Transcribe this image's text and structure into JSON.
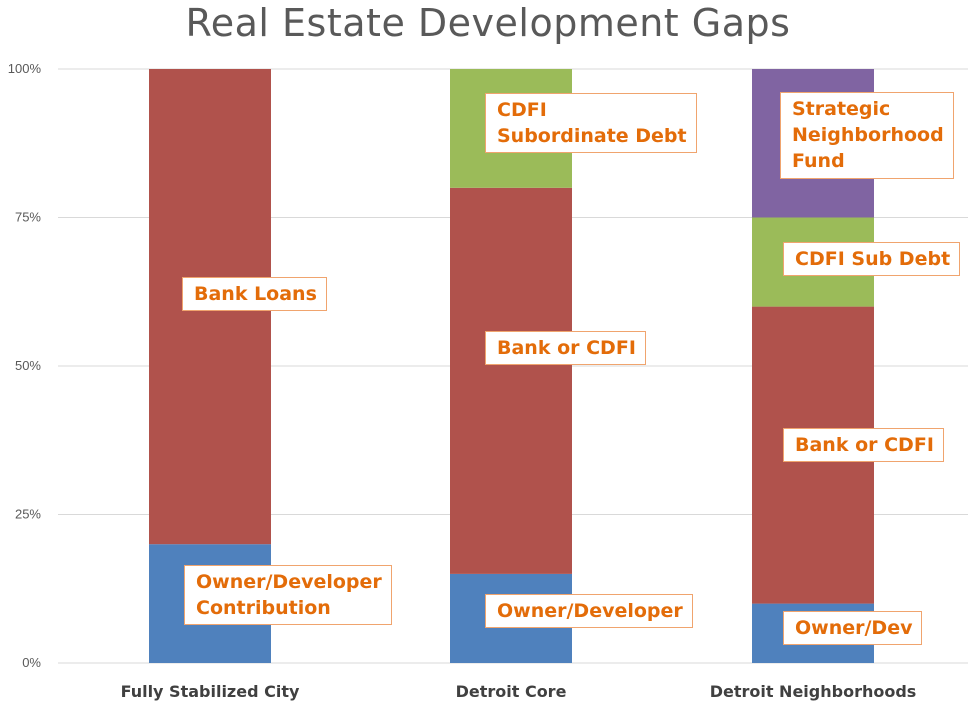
{
  "chart_data": {
    "type": "bar",
    "stacked": true,
    "title": "Real Estate Development Gaps",
    "xlabel": "",
    "ylabel": "",
    "ylim": [
      0,
      100
    ],
    "y_ticks": [
      "0%",
      "25%",
      "50%",
      "75%",
      "100%"
    ],
    "grid": true,
    "categories": [
      "Fully Stabilized City",
      "Detroit Core",
      "Detroit Neighborhoods"
    ],
    "stacks": [
      {
        "category": "Fully Stabilized City",
        "segments": [
          {
            "label": "Owner/Developer\nContribution",
            "value": 20,
            "color": "#4f81bd"
          },
          {
            "label": "Bank Loans",
            "value": 80,
            "color": "#b0524c"
          }
        ]
      },
      {
        "category": "Detroit Core",
        "segments": [
          {
            "label": "Owner/Developer",
            "value": 15,
            "color": "#4f81bd"
          },
          {
            "label": "Bank or CDFI",
            "value": 65,
            "color": "#b0524c"
          },
          {
            "label": "CDFI\nSubordinate Debt",
            "value": 20,
            "color": "#9bbb59"
          }
        ]
      },
      {
        "category": "Detroit Neighborhoods",
        "segments": [
          {
            "label": "Owner/Dev",
            "value": 10,
            "color": "#4f81bd"
          },
          {
            "label": "Bank or CDFI",
            "value": 50,
            "color": "#b0524c"
          },
          {
            "label": "CDFI Sub Debt",
            "value": 15,
            "color": "#9bbb59"
          },
          {
            "label": "Strategic\nNeighborhood\nFund",
            "value": 25,
            "color": "#8064a2"
          }
        ]
      }
    ]
  }
}
